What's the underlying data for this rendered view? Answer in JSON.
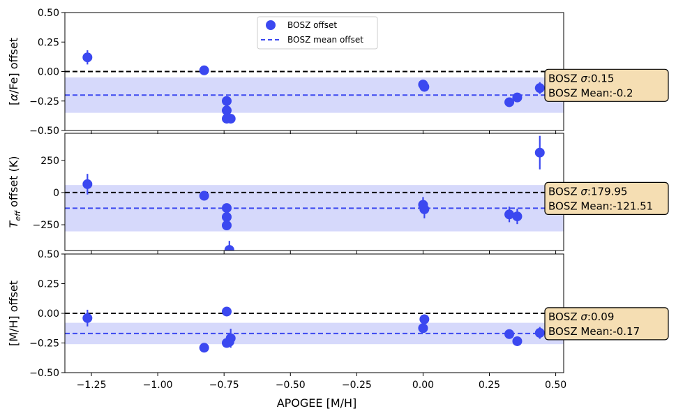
{
  "chart_data": {
    "type": "scatter",
    "xlabel": "APOGEE [M/H]",
    "xlim": [
      -1.35,
      0.53
    ],
    "x_ticks": [
      -1.25,
      -1.0,
      -0.75,
      -0.5,
      -0.25,
      0.0,
      0.25,
      0.5
    ],
    "x_tick_labels": [
      "−1.25",
      "−1.00",
      "−0.75",
      "−0.50",
      "−0.25",
      "0.00",
      "0.25",
      "0.50"
    ],
    "legend": {
      "placement": "top-center",
      "entries": [
        {
          "label": "BOSZ offset",
          "marker": "circle"
        },
        {
          "label": "BOSZ mean offset",
          "marker": "dashed-line"
        }
      ]
    },
    "colors": {
      "points": "#3b48f0",
      "band": "#d6d9fb",
      "mean_line": "#3b48f0",
      "zero_line": "#000000",
      "box_fill": "#f5deb3"
    },
    "panels": [
      {
        "ylabel": "[α/Fe] offset",
        "ylabel_parts": {
          "pre": "[",
          "greek": "α",
          "post": "/Fe] offset"
        },
        "ylim": [
          -0.5,
          0.5
        ],
        "y_ticks": [
          -0.5,
          -0.25,
          0.0,
          0.25,
          0.5
        ],
        "y_tick_labels": [
          "−0.50",
          "−0.25",
          "0.00",
          "0.25",
          "0.50"
        ],
        "mean": -0.2,
        "sigma": 0.15,
        "stats_lines": [
          {
            "prefix": "BOSZ ",
            "symbol": "σ",
            "value": ":0.15"
          },
          {
            "prefix": "BOSZ Mean:",
            "symbol": "",
            "value": "-0.2"
          }
        ],
        "points": [
          {
            "x": -1.265,
            "y": 0.12,
            "err": 0.06
          },
          {
            "x": -0.825,
            "y": 0.01,
            "err": 0.0
          },
          {
            "x": -0.74,
            "y": -0.25,
            "err": 0.0
          },
          {
            "x": -0.74,
            "y": -0.33,
            "err": 0.0
          },
          {
            "x": -0.74,
            "y": -0.4,
            "err": 0.0
          },
          {
            "x": -0.725,
            "y": -0.4,
            "err": 0.0
          },
          {
            "x": 0.0,
            "y": -0.11,
            "err": 0.0
          },
          {
            "x": 0.005,
            "y": -0.13,
            "err": 0.0
          },
          {
            "x": 0.325,
            "y": -0.26,
            "err": 0.0
          },
          {
            "x": 0.355,
            "y": -0.22,
            "err": 0.0
          },
          {
            "x": 0.44,
            "y": -0.14,
            "err": 0.05
          }
        ]
      },
      {
        "ylabel": "Teff offset (K)",
        "ylabel_parts": {
          "pre": "T",
          "sub": "eff",
          "post": " offset (K)"
        },
        "ylim": [
          -450,
          460
        ],
        "y_ticks": [
          -250,
          0,
          250
        ],
        "y_tick_labels": [
          "−250",
          "0",
          "250"
        ],
        "mean": -121.51,
        "sigma": 179.95,
        "stats_lines": [
          {
            "prefix": "BOSZ ",
            "symbol": "σ",
            "value": ":179.95"
          },
          {
            "prefix": "BOSZ Mean:",
            "symbol": "",
            "value": "-121.51"
          }
        ],
        "points": [
          {
            "x": -1.265,
            "y": 65,
            "err": 80
          },
          {
            "x": -0.825,
            "y": -25,
            "err": 0
          },
          {
            "x": -0.74,
            "y": -120,
            "err": 0
          },
          {
            "x": -0.74,
            "y": -190,
            "err": 0
          },
          {
            "x": -0.74,
            "y": -255,
            "err": 0
          },
          {
            "x": -0.73,
            "y": -445,
            "err": 70
          },
          {
            "x": 0.0,
            "y": -95,
            "err": 60
          },
          {
            "x": 0.005,
            "y": -130,
            "err": 70
          },
          {
            "x": 0.325,
            "y": -170,
            "err": 60
          },
          {
            "x": 0.355,
            "y": -185,
            "err": 60
          },
          {
            "x": 0.44,
            "y": 310,
            "err": 130
          }
        ]
      },
      {
        "ylabel": "[M/H] offset",
        "ylabel_parts": {
          "pre": "[M/H] offset"
        },
        "ylim": [
          -0.5,
          0.5
        ],
        "y_ticks": [
          -0.5,
          -0.25,
          0.0,
          0.25,
          0.5
        ],
        "y_tick_labels": [
          "−0.50",
          "−0.25",
          "0.00",
          "0.25",
          "0.50"
        ],
        "mean": -0.17,
        "sigma": 0.09,
        "stats_lines": [
          {
            "prefix": "BOSZ ",
            "symbol": "σ",
            "value": ":0.09"
          },
          {
            "prefix": "BOSZ Mean:",
            "symbol": "",
            "value": "-0.17"
          }
        ],
        "points": [
          {
            "x": -1.265,
            "y": -0.04,
            "err": 0.07
          },
          {
            "x": -0.825,
            "y": -0.29,
            "err": 0.0
          },
          {
            "x": -0.74,
            "y": 0.015,
            "err": 0.0
          },
          {
            "x": -0.74,
            "y": -0.25,
            "err": 0.0
          },
          {
            "x": -0.73,
            "y": -0.24,
            "err": 0.04
          },
          {
            "x": -0.725,
            "y": -0.21,
            "err": 0.08
          },
          {
            "x": 0.0,
            "y": -0.125,
            "err": 0.0
          },
          {
            "x": 0.005,
            "y": -0.05,
            "err": 0.0
          },
          {
            "x": 0.325,
            "y": -0.175,
            "err": 0.0
          },
          {
            "x": 0.355,
            "y": -0.235,
            "err": 0.0
          },
          {
            "x": 0.44,
            "y": -0.165,
            "err": 0.05
          }
        ]
      }
    ]
  }
}
